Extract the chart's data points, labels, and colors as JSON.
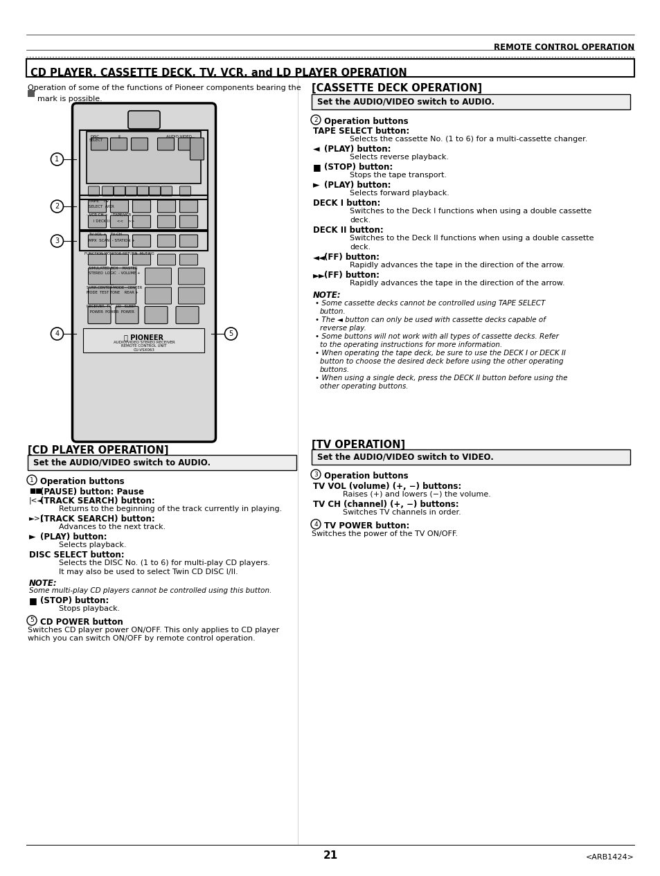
{
  "page_title": "REMOTE CONTROL OPERATION",
  "section_title": "CD PLAYER, CASSETTE DECK, TV, VCR, and LD PLAYER OPERATION",
  "intro_line1": "Operation of some of the functions of Pioneer components bearing the",
  "intro_line2": "  mark is possible.",
  "cassette_header": "[CASSETTE DECK OPERATION]",
  "cassette_box": "Set the AUDIO/VIDEO switch to AUDIO.",
  "cassette_op_num": "2",
  "cd_header": "[CD PLAYER OPERATION]",
  "cd_box": "Set the AUDIO/VIDEO switch to AUDIO.",
  "cd_op_num": "1",
  "tv_header": "[TV OPERATION]",
  "tv_box": "Set the AUDIO/VIDEO switch to VIDEO.",
  "tv_op_num": "3",
  "page_num": "21",
  "page_code": "<ARB1424>",
  "bg_color": "#ffffff"
}
